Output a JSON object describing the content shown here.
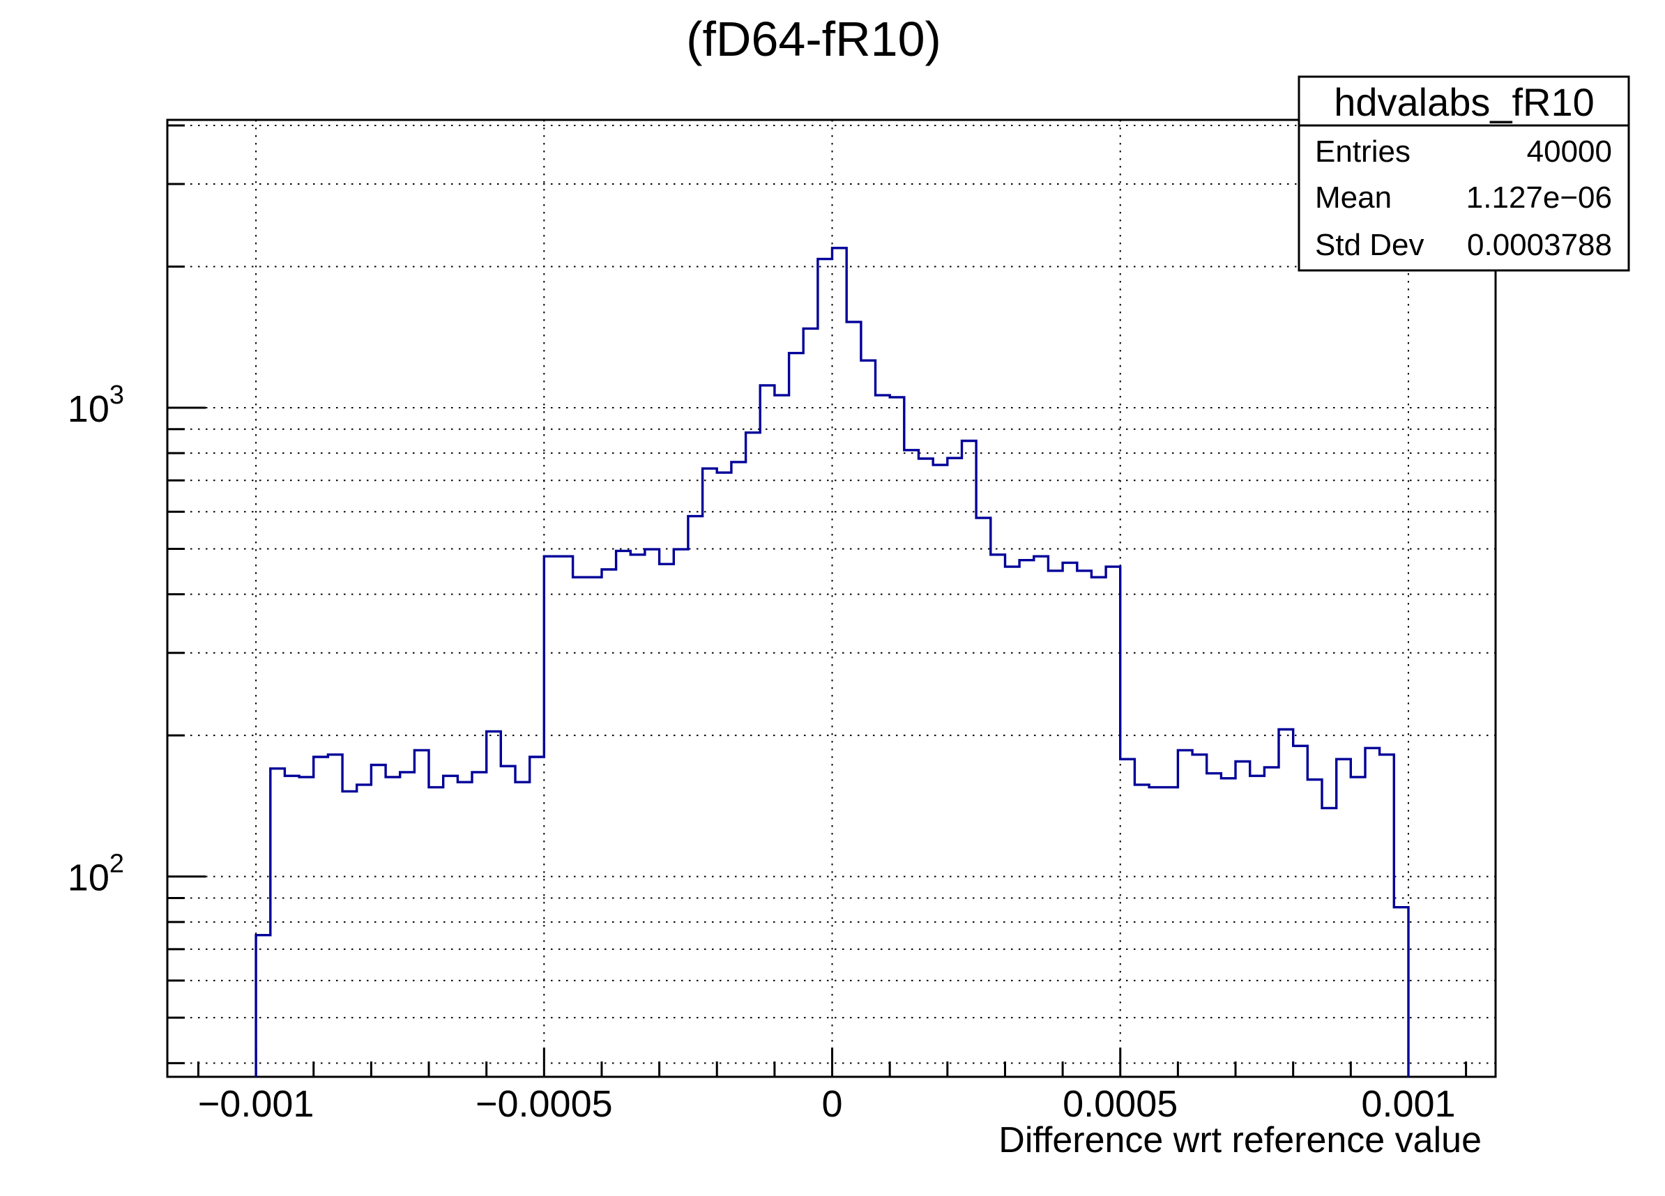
{
  "page_title": "(fD64-fR10)",
  "stats_box": {
    "title": "hdvalabs_fR10",
    "rows": [
      {
        "label": "Entries",
        "value": "40000"
      },
      {
        "label": "Mean",
        "value": "1.127e−06"
      },
      {
        "label": "Std Dev",
        "value": "0.0003788"
      }
    ]
  },
  "chart_data": {
    "type": "bar",
    "style": "step-outline-histogram",
    "title": "(fD64-fR10)",
    "xlabel": "Difference wrt reference value",
    "ylabel": "",
    "legend": "none",
    "grid": true,
    "y_scale": "log",
    "x_range": [
      -0.0011538,
      0.0011513
    ],
    "y_range": [
      37.4,
      4111
    ],
    "line_color": "#000099",
    "grid_color": "#000000",
    "bins": {
      "start": -0.001,
      "end": 0.001,
      "count": 80,
      "width": 2.5e-05
    },
    "values": [
      75,
      170,
      164,
      163,
      180,
      182,
      152,
      157,
      173,
      163,
      167,
      186,
      155,
      164,
      159,
      167,
      204,
      172,
      159,
      180,
      482,
      482,
      435,
      435,
      452,
      495,
      486,
      499,
      464,
      499,
      587,
      742,
      727,
      766,
      885,
      1116,
      1063,
      1308,
      1475,
      2076,
      2191,
      1524,
      1261,
      1063,
      1053,
      812,
      779,
      755,
      781,
      850,
      582,
      486,
      458,
      473,
      482,
      449,
      467,
      449,
      435,
      458,
      178,
      157,
      155,
      155,
      186,
      182,
      166,
      162,
      176,
      164,
      171,
      206,
      190,
      161,
      140,
      178,
      163,
      188,
      182,
      86
    ],
    "x_axis": {
      "major_ticks": [
        -0.001,
        -0.0005,
        0,
        0.0005,
        0.001
      ],
      "tick_labels": [
        "−0.001",
        "−0.0005",
        "0",
        "0.0005",
        "0.001"
      ],
      "minor_tick_step": 0.0001
    },
    "y_axis": {
      "major_ticks": [
        {
          "value": 100,
          "base": "10",
          "exp": "2"
        },
        {
          "value": 1000,
          "base": "10",
          "exp": "3"
        }
      ],
      "minor_gridlines": [
        40,
        50,
        60,
        70,
        80,
        90,
        200,
        300,
        400,
        500,
        600,
        700,
        800,
        900,
        2000,
        3000,
        4000
      ]
    }
  }
}
